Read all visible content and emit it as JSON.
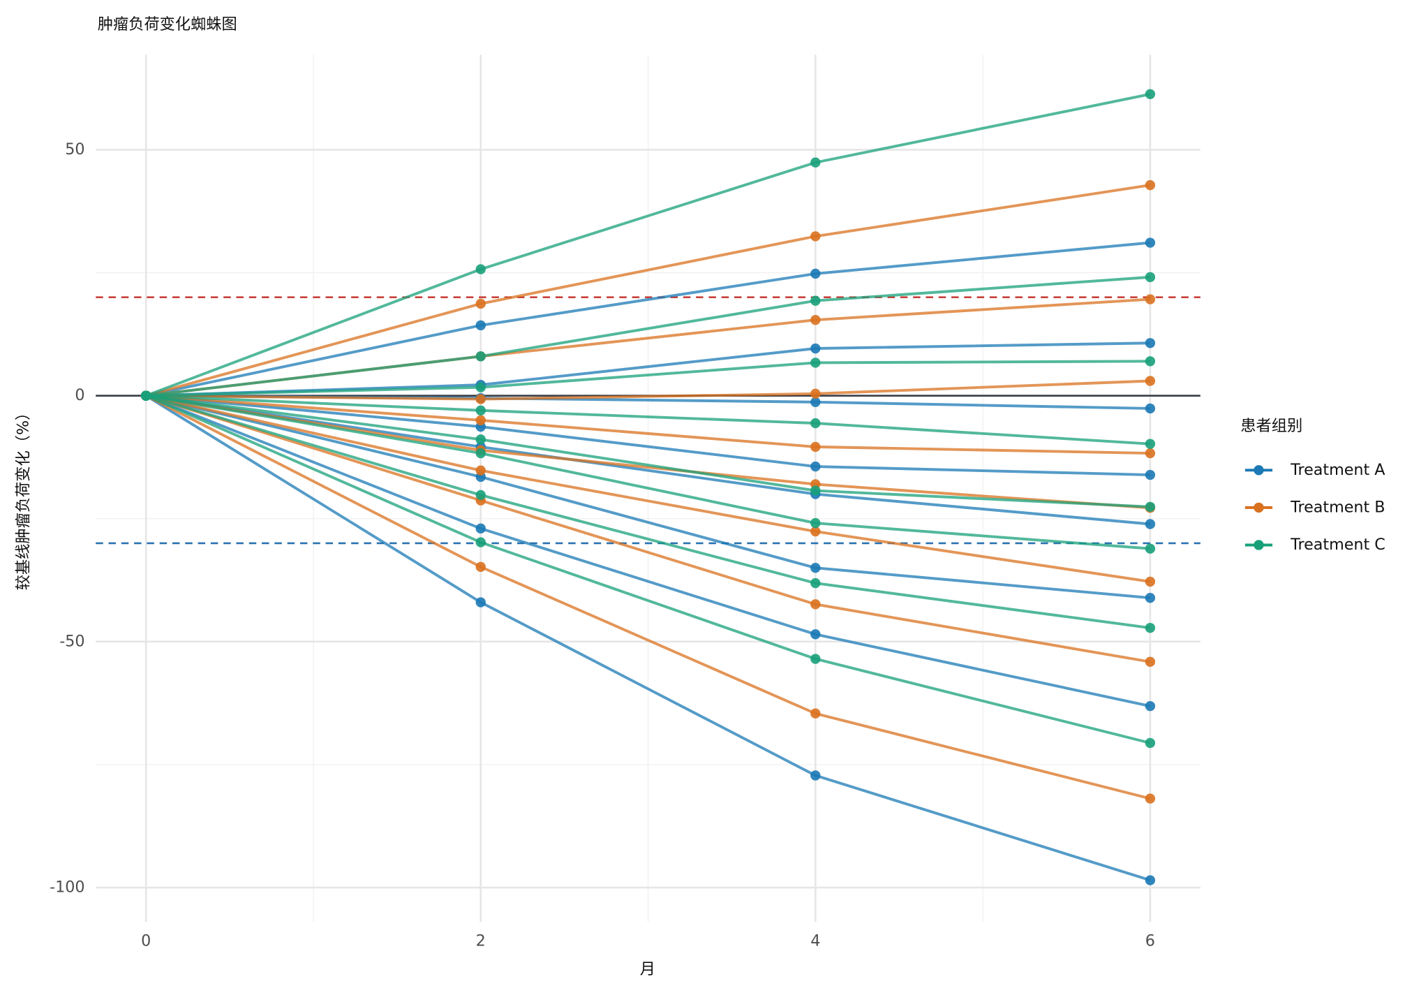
{
  "chart_data": {
    "type": "spider",
    "title": "肿瘤负荷变化蜘蛛图",
    "x_label": "月",
    "y_label": "较基线肿瘤负荷变化（%）",
    "legend_title": "患者组别",
    "legend_position": "right",
    "x": [
      0,
      2,
      4,
      6
    ],
    "xlim": [
      -0.3,
      6.3
    ],
    "xticks": [
      0,
      2,
      4,
      6
    ],
    "xminor": [
      1,
      3,
      5
    ],
    "ylim": [
      -107,
      69.3
    ],
    "yticks": [
      50,
      0,
      -50,
      -100
    ],
    "yminor": [
      25,
      -25,
      -75
    ],
    "grid": true,
    "hlines": [
      {
        "value": 0,
        "color": "#3a3f47",
        "dash": false
      },
      {
        "value": 20,
        "color": "#c8413b",
        "dash": true
      },
      {
        "value": -30,
        "color": "#2a72b0",
        "dash": true
      }
    ],
    "groups": [
      {
        "name": "Treatment A",
        "color": "#1b79b5",
        "patients": [
          [
            0,
            14.3,
            24.8,
            31.1
          ],
          [
            0,
            2.2,
            9.6,
            10.7
          ],
          [
            0,
            -0.5,
            -1.3,
            -2.6
          ],
          [
            0,
            -6.3,
            -14.4,
            -16.1
          ],
          [
            0,
            -10.4,
            -20,
            -26.1
          ],
          [
            0,
            -16.5,
            -35,
            -41.1
          ],
          [
            0,
            -27,
            -48.5,
            -63.1
          ],
          [
            0,
            -42,
            -77.2,
            -98.5
          ]
        ]
      },
      {
        "name": "Treatment B",
        "color": "#d9711f",
        "patients": [
          [
            0,
            18.7,
            32.4,
            42.8
          ],
          [
            0,
            8,
            15.4,
            19.6
          ],
          [
            0,
            -0.7,
            0.4,
            3
          ],
          [
            0,
            -5,
            -10.4,
            -11.7
          ],
          [
            0,
            -11.1,
            -18,
            -22.8
          ],
          [
            0,
            -15.2,
            -27.6,
            -37.8
          ],
          [
            0,
            -21.3,
            -42.4,
            -54.1
          ],
          [
            0,
            -34.8,
            -64.6,
            -81.9
          ]
        ]
      },
      {
        "name": "Treatment C",
        "color": "#18a07a",
        "patients": [
          [
            0,
            25.7,
            47.4,
            61.3
          ],
          [
            0,
            8,
            19.3,
            24.1
          ],
          [
            0,
            1.7,
            6.7,
            7
          ],
          [
            0,
            -3,
            -5.6,
            -9.8
          ],
          [
            0,
            -8.9,
            -19.3,
            -22.6
          ],
          [
            0,
            -11.7,
            -25.9,
            -31.1
          ],
          [
            0,
            -20.2,
            -38.1,
            -47.2
          ],
          [
            0,
            -29.8,
            -53.5,
            -70.6
          ]
        ]
      }
    ]
  }
}
